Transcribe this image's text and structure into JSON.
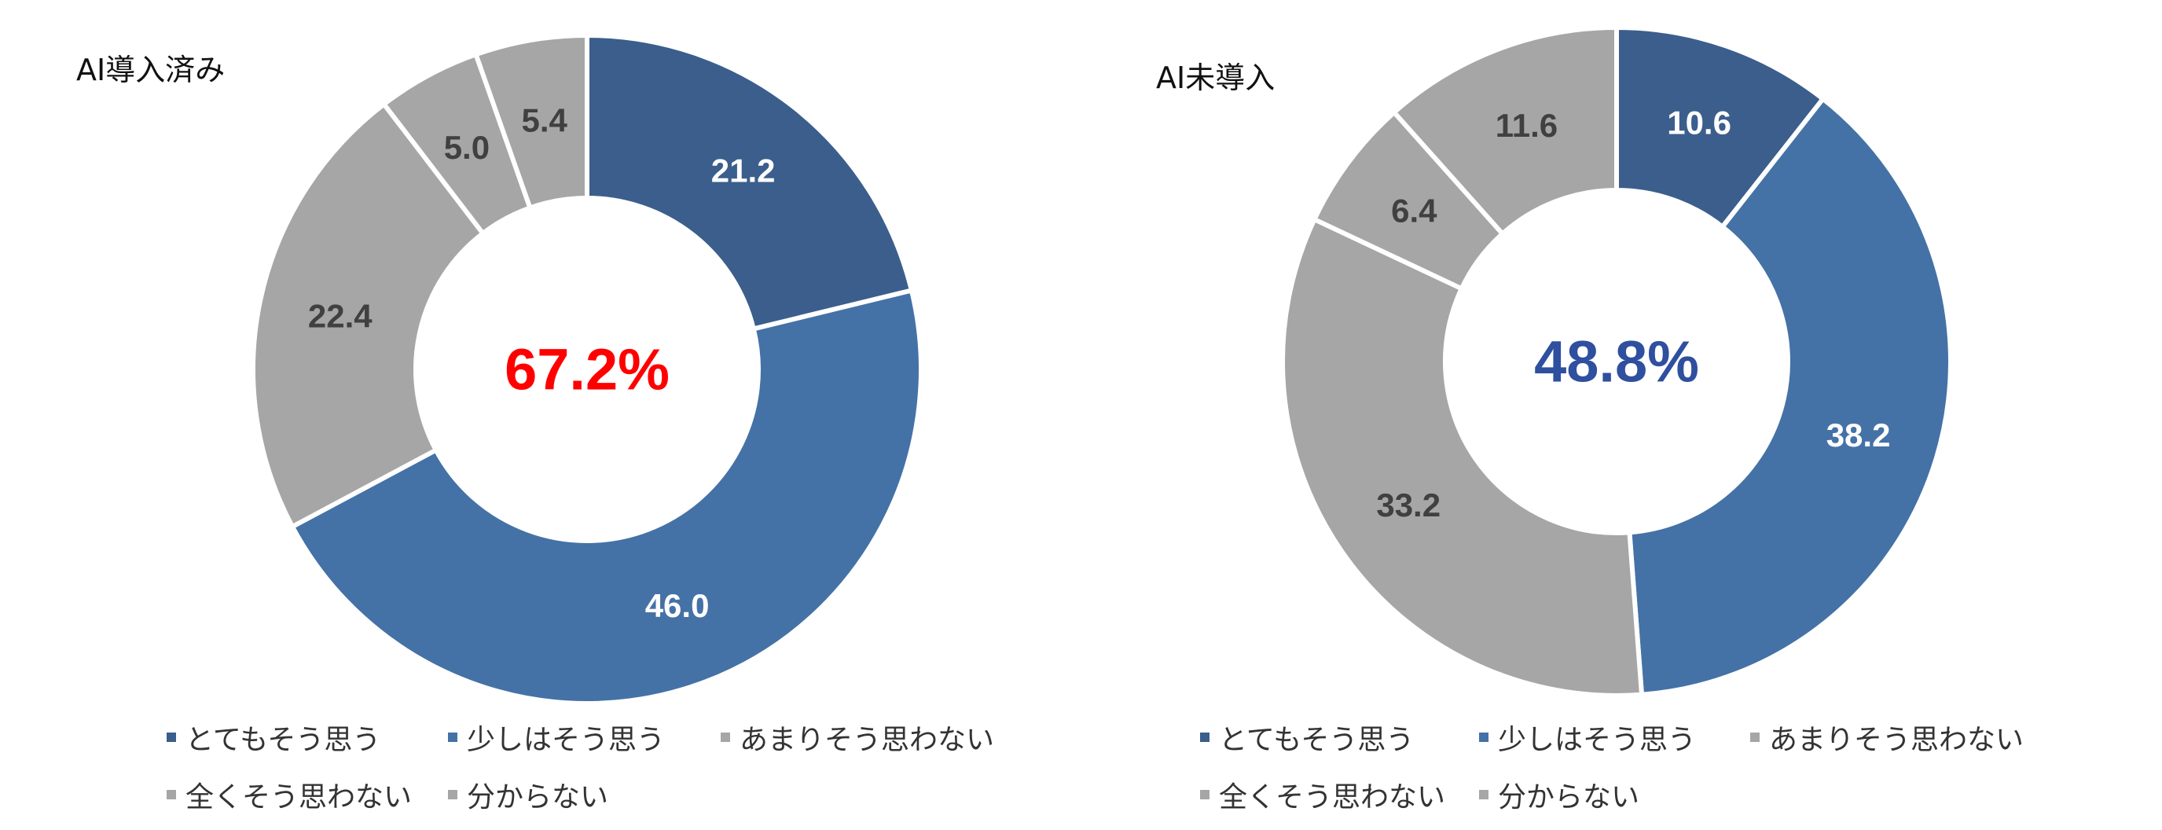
{
  "legend_labels": [
    "とてもそう思う",
    "少しはそう思う",
    "あまりそう思わない",
    "全くそう思わない",
    "分からない"
  ],
  "colors": [
    "#3B5E8C",
    "#4472A6",
    "#A6A6A6",
    "#A6A6A6",
    "#A6A6A6"
  ],
  "chart_data": [
    {
      "type": "pie",
      "title": "AI導入済み",
      "center_label": "67.2%",
      "center_color": "#FF0000",
      "categories": [
        "とてもそう思う",
        "少しはそう思う",
        "あまりそう思わない",
        "全くそう思わない",
        "分からない"
      ],
      "values": [
        21.2,
        46.0,
        22.4,
        5.0,
        5.4
      ],
      "data_labels": [
        "21.2",
        "46.0",
        "22.4",
        "5.0",
        "5.4"
      ],
      "legend_position": "bottom"
    },
    {
      "type": "pie",
      "title": "AI未導入",
      "center_label": "48.8%",
      "center_color": "#2F4F9F",
      "categories": [
        "とてもそう思う",
        "少しはそう思う",
        "あまりそう思わない",
        "全くそう思わない",
        "分からない"
      ],
      "values": [
        10.6,
        38.2,
        33.2,
        6.4,
        11.6
      ],
      "data_labels": [
        "10.6",
        "38.2",
        "33.2",
        "6.4",
        "11.6"
      ],
      "legend_position": "bottom"
    }
  ]
}
